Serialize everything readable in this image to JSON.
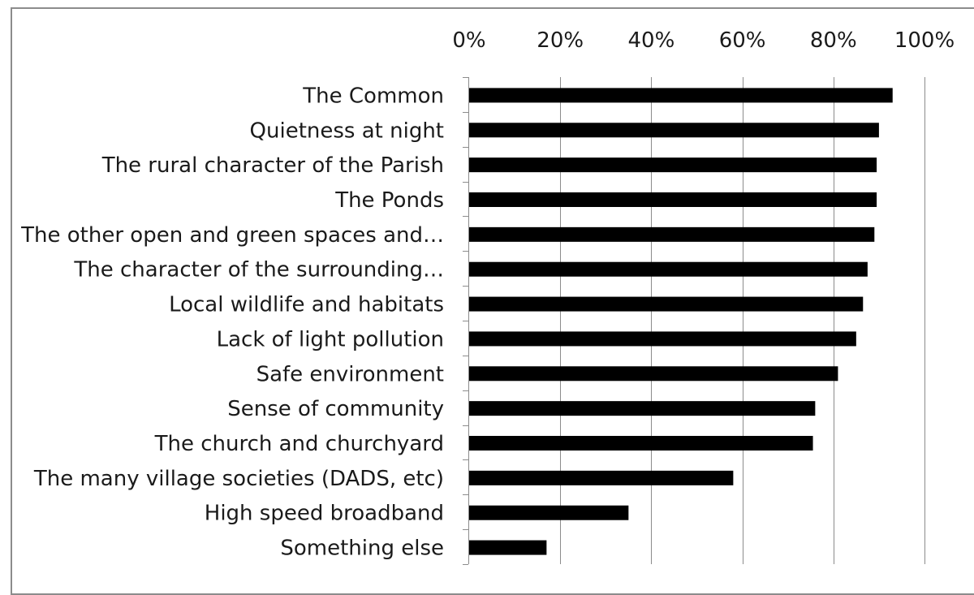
{
  "chart_data": {
    "type": "bar",
    "orientation": "horizontal",
    "title": "",
    "xlabel": "",
    "ylabel": "",
    "xlim": [
      0,
      100
    ],
    "x_tick_labels": [
      "0%",
      "20%",
      "40%",
      "60%",
      "80%",
      "100%"
    ],
    "x_ticks": [
      0,
      20,
      40,
      60,
      80,
      100
    ],
    "x_axis_position": "top",
    "grid": "vertical",
    "bar_color": "#000000",
    "categories": [
      "The Common",
      "Quietness at night",
      "The rural character of the Parish",
      "The Ponds",
      "The other open and green spaces and…",
      "The character of the surrounding…",
      "Local wildlife and habitats",
      "Lack of light pollution",
      "Safe environment",
      "Sense of community",
      "The church and churchyard",
      "The many village societies (DADS, etc)",
      "High speed broadband",
      "Something else"
    ],
    "values": [
      93,
      90,
      89.5,
      89.5,
      89,
      87.5,
      86.5,
      85,
      81,
      76,
      75.5,
      58,
      35,
      17
    ]
  }
}
